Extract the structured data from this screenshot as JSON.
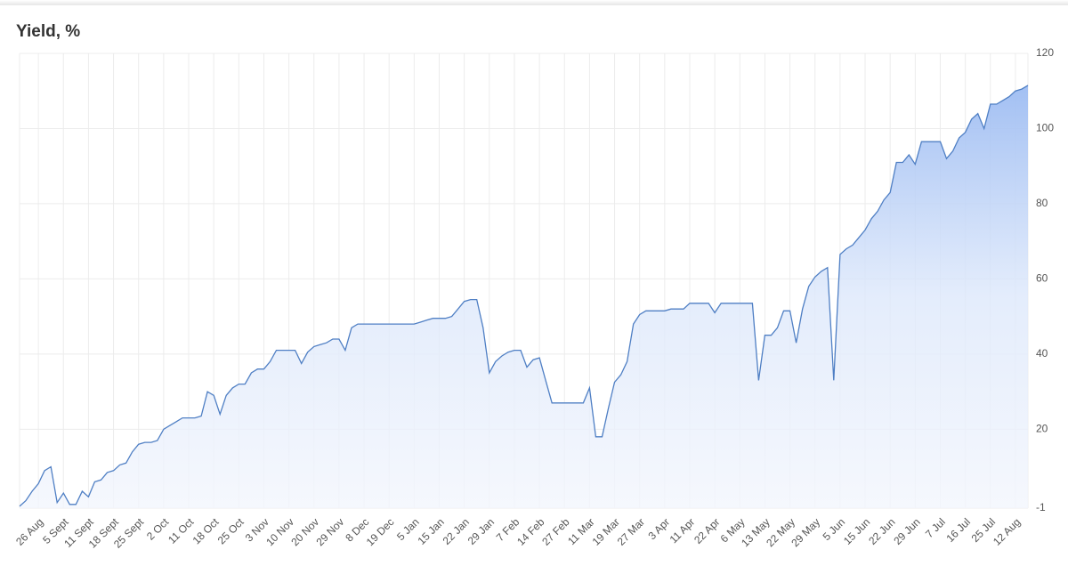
{
  "chart_data": {
    "type": "area",
    "title": "Yield, %",
    "categories": [
      null,
      null,
      null,
      "26 Aug",
      null,
      null,
      null,
      "5 Sept",
      null,
      null,
      null,
      "11 Sept",
      null,
      null,
      null,
      "18 Sept",
      null,
      null,
      null,
      "25 Sept",
      null,
      null,
      null,
      "2 Oct",
      null,
      null,
      null,
      "11 Oct",
      null,
      null,
      null,
      "18 Oct",
      null,
      null,
      null,
      "25 Oct",
      null,
      null,
      null,
      "3 Nov",
      null,
      null,
      null,
      "10 Nov",
      null,
      null,
      null,
      "20 Nov",
      null,
      null,
      null,
      "29 Nov",
      null,
      null,
      null,
      "8 Dec",
      null,
      null,
      null,
      "19 Dec",
      null,
      null,
      null,
      "5 Jan",
      null,
      null,
      null,
      "15 Jan",
      null,
      null,
      null,
      "22 Jan",
      null,
      null,
      null,
      "29 Jan",
      null,
      null,
      null,
      "7 Feb",
      null,
      null,
      null,
      "14 Feb",
      null,
      null,
      null,
      "27 Feb",
      null,
      null,
      null,
      "11 Mar",
      null,
      null,
      null,
      "19 Mar",
      null,
      null,
      null,
      "27 Mar",
      null,
      null,
      null,
      "3 Apr",
      null,
      null,
      null,
      "11 Apr",
      null,
      null,
      null,
      "22 Apr",
      null,
      null,
      null,
      "6 May",
      null,
      null,
      null,
      "13 May",
      null,
      null,
      null,
      "22 May",
      null,
      null,
      null,
      "29 May",
      null,
      null,
      null,
      "5 Jun",
      null,
      null,
      null,
      "15 Jun",
      null,
      null,
      null,
      "22 Jun",
      null,
      null,
      null,
      "29 Jun",
      null,
      null,
      null,
      "7 Jul",
      null,
      null,
      null,
      "16 Jul",
      null,
      null,
      null,
      "25 Jul",
      null,
      null,
      null,
      "12 Aug",
      null,
      null
    ],
    "values": [
      -0.5,
      1,
      3.5,
      5.5,
      9,
      10,
      0.5,
      3,
      0,
      0,
      3.5,
      2,
      6,
      6.5,
      8.5,
      9,
      10.5,
      11,
      14,
      16,
      16.5,
      16.5,
      17,
      20,
      21,
      22,
      23,
      23,
      23,
      23.5,
      30,
      29,
      24,
      29,
      31,
      32,
      32,
      35,
      36,
      36,
      38,
      41,
      41,
      41,
      41,
      37.5,
      40.5,
      42,
      42.5,
      43,
      44,
      44,
      41,
      47,
      48,
      48,
      48,
      48,
      48,
      48,
      48,
      48,
      48,
      48,
      48.5,
      49,
      49.5,
      49.5,
      49.5,
      50,
      52,
      54,
      54.5,
      54.5,
      47,
      35,
      38,
      39.5,
      40.5,
      41,
      41,
      36.5,
      38.5,
      39,
      33,
      27,
      27,
      27,
      27,
      27,
      27,
      31,
      18,
      18,
      25.5,
      32.5,
      34.5,
      38,
      48,
      50.5,
      51.5,
      51.5,
      51.5,
      51.5,
      52,
      52,
      52,
      53.5,
      53.5,
      53.5,
      53.5,
      51,
      53.5,
      53.5,
      53.5,
      53.5,
      53.5,
      53.5,
      33,
      45,
      45,
      47,
      51.5,
      51.5,
      43,
      52,
      58,
      60.5,
      62,
      63,
      33,
      66.5,
      68,
      69,
      71,
      73,
      76,
      78,
      81,
      83,
      91,
      91,
      93,
      90.5,
      96.5,
      96.5,
      96.5,
      96.5,
      92,
      94,
      97.5,
      99,
      102.5,
      104,
      100,
      106.5,
      106.5,
      107.5,
      108.5,
      110,
      110.5,
      111.5
    ],
    "color": "#4f7fc4",
    "ylim": [
      -1,
      120
    ],
    "yticks": [
      -1,
      20,
      40,
      60,
      80,
      100,
      120
    ],
    "grid": true
  }
}
